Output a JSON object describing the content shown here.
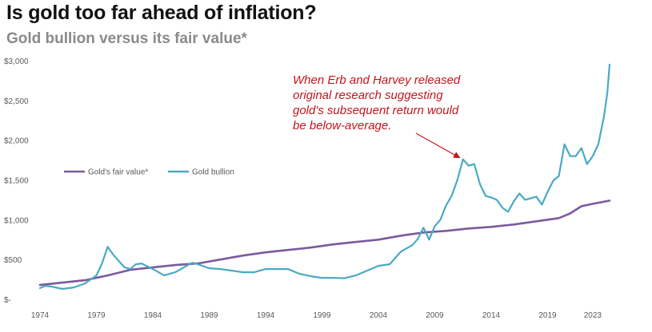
{
  "chart_data": {
    "type": "line",
    "title": "Is gold too far ahead of inflation?",
    "subtitle": "Gold bullion versus its fair value*",
    "xlabel": "",
    "ylabel": "",
    "xlim": [
      1974,
      2024.5
    ],
    "ylim": [
      0,
      3000
    ],
    "yticks": [
      0,
      500,
      1000,
      1500,
      2000,
      2500,
      3000
    ],
    "ytick_labels": [
      "$-",
      "$500",
      "$1,000",
      "$1,500",
      "$2,000",
      "$2,500",
      "$3,000"
    ],
    "xticks": [
      1974,
      1979,
      1984,
      1989,
      1994,
      1999,
      2004,
      2009,
      2014,
      2019,
      2023
    ],
    "xtick_labels": [
      "1974",
      "1979",
      "1984",
      "1989",
      "1994",
      "1999",
      "2004",
      "2009",
      "2014",
      "2019",
      "2023"
    ],
    "grid": false,
    "legend_position": "center-left",
    "series": [
      {
        "name": "Gold's fair value*",
        "color": "#7b5a9c",
        "x": [
          1974,
          1976,
          1978,
          1980,
          1982,
          1984,
          1986,
          1988,
          1990,
          1992,
          1994,
          1996,
          1998,
          2000,
          2002,
          2004,
          2006,
          2008,
          2010,
          2012,
          2014,
          2016,
          2018,
          2020,
          2021,
          2022,
          2023,
          2024.5
        ],
        "values": [
          180,
          210,
          240,
          300,
          370,
          400,
          430,
          450,
          500,
          550,
          590,
          620,
          650,
          690,
          720,
          750,
          800,
          840,
          860,
          890,
          910,
          940,
          980,
          1020,
          1080,
          1170,
          1200,
          1240
        ]
      },
      {
        "name": "Gold bullion",
        "color": "#4aaac4",
        "x": [
          1974,
          1974.5,
          1975,
          1976,
          1977,
          1978,
          1979,
          1979.5,
          1980,
          1980.5,
          1981,
          1981.5,
          1982,
          1982.5,
          1983,
          1984,
          1985,
          1986,
          1987,
          1987.5,
          1988,
          1989,
          1990,
          1991,
          1992,
          1993,
          1994,
          1995,
          1996,
          1997,
          1998,
          1999,
          2000,
          2001,
          2002,
          2003,
          2004,
          2005,
          2006,
          2007,
          2007.5,
          2008,
          2008.5,
          2009,
          2009.5,
          2010,
          2010.5,
          2011,
          2011.5,
          2012,
          2012.5,
          2013,
          2013.5,
          2014,
          2014.5,
          2015,
          2015.5,
          2016,
          2016.5,
          2017,
          2018,
          2018.5,
          2019,
          2019.5,
          2020,
          2020.5,
          2021,
          2021.5,
          2022,
          2022.5,
          2023,
          2023.5,
          2024,
          2024.3,
          2024.5
        ],
        "values": [
          140,
          170,
          160,
          130,
          150,
          200,
          300,
          450,
          660,
          560,
          480,
          400,
          380,
          440,
          450,
          380,
          300,
          340,
          420,
          460,
          440,
          390,
          380,
          360,
          340,
          340,
          380,
          380,
          380,
          320,
          290,
          270,
          270,
          265,
          300,
          360,
          420,
          440,
          600,
          680,
          760,
          900,
          750,
          920,
          1000,
          1180,
          1300,
          1500,
          1760,
          1680,
          1700,
          1450,
          1300,
          1280,
          1250,
          1150,
          1100,
          1230,
          1330,
          1250,
          1290,
          1190,
          1350,
          1490,
          1550,
          1950,
          1800,
          1800,
          1900,
          1700,
          1800,
          1950,
          2300,
          2600,
          2950
        ]
      }
    ]
  },
  "annotation": {
    "lines": [
      "When Erb and Harvey released",
      "original research suggesting",
      "gold's subsequent return would",
      "be below-average."
    ],
    "arrow_target": {
      "x": 2011.5,
      "y": 1760
    }
  }
}
